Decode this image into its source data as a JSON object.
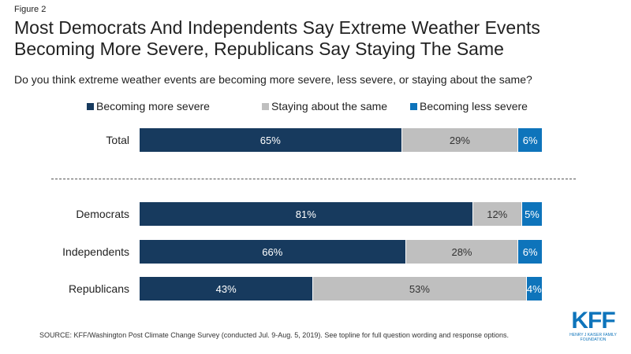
{
  "header": {
    "figure_label": "Figure 2",
    "title": "Most Democrats And Independents Say Extreme Weather Events Becoming More Severe, Republicans Say Staying The Same",
    "subtitle": "Do you think extreme weather events are becoming more severe, less severe, or staying about the same?"
  },
  "colors": {
    "more": "#173a5e",
    "same": "#bfbfbf",
    "less": "#0e74bb"
  },
  "chart_data": {
    "type": "bar",
    "orientation": "horizontal",
    "stacked": true,
    "categories": [
      "Total",
      "Democrats",
      "Independents",
      "Republicans"
    ],
    "series": [
      {
        "name": "Becoming more severe",
        "values": [
          65,
          81,
          66,
          43
        ]
      },
      {
        "name": "Staying about the same",
        "values": [
          29,
          12,
          28,
          53
        ]
      },
      {
        "name": "Becoming less severe",
        "values": [
          6,
          5,
          6,
          4
        ]
      }
    ],
    "data_labels": [
      [
        "65%",
        "81%",
        "66%",
        "43%"
      ],
      [
        "29%",
        "12%",
        "28%",
        "53%"
      ],
      [
        "6%",
        "5%",
        "6%",
        "4%"
      ]
    ],
    "legend_position": "top"
  },
  "footer": {
    "source": "SOURCE: KFF/Washington Post Climate Change Survey (conducted Jul. 9-Aug. 5, 2019). See topline for full question wording and response options.",
    "logo_text": "KFF",
    "logo_subtext": "HENRY J KAISER FAMILY FOUNDATION"
  }
}
